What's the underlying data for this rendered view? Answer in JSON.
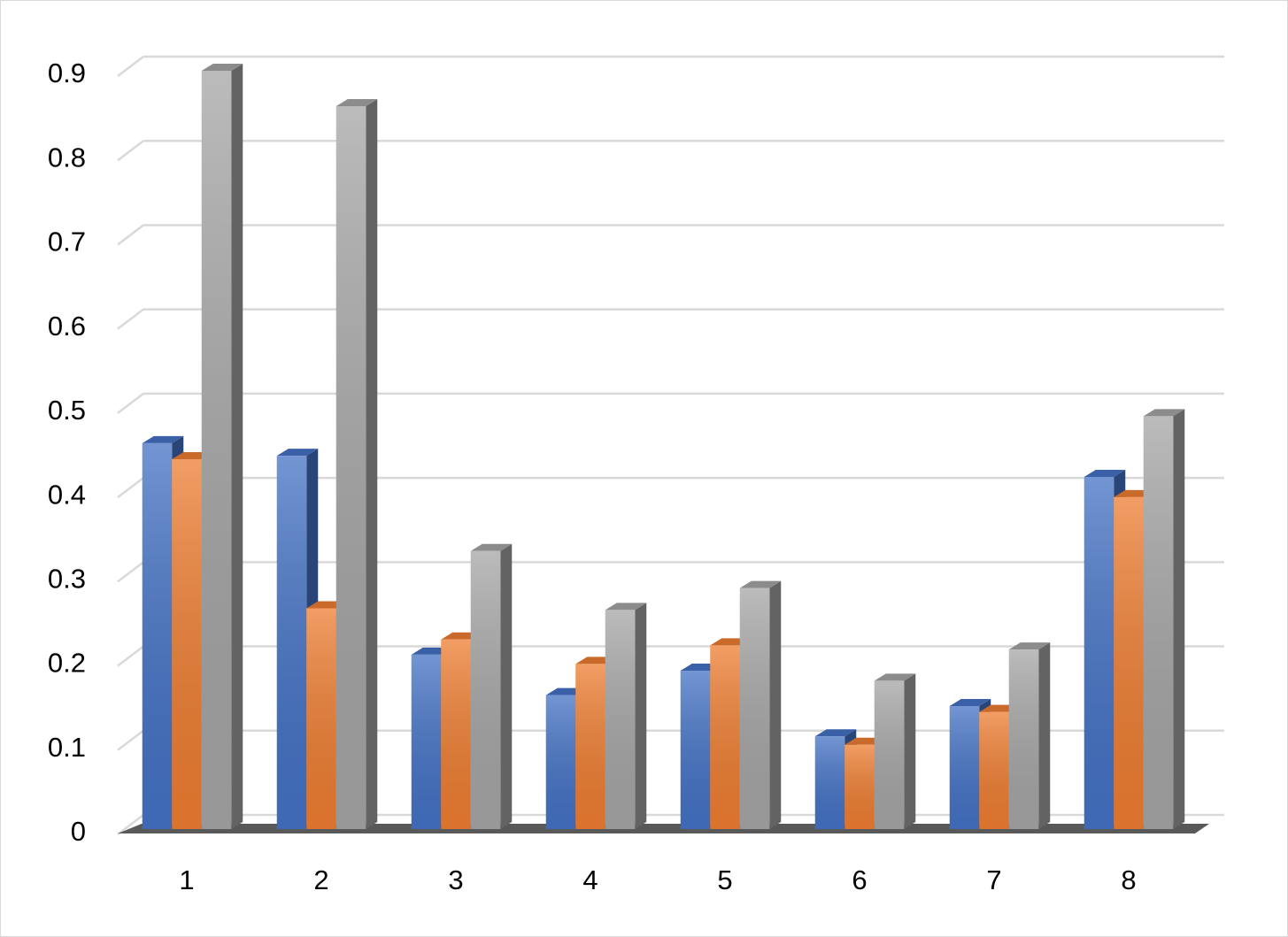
{
  "chart_data": {
    "type": "bar3d",
    "categories": [
      "1",
      "2",
      "3",
      "4",
      "5",
      "6",
      "7",
      "8"
    ],
    "series": [
      {
        "color": "#4472c4",
        "values": [
          0.458,
          0.443,
          0.207,
          0.159,
          0.188,
          0.11,
          0.146,
          0.418
        ]
      },
      {
        "color": "#ed7d31",
        "values": [
          0.439,
          0.262,
          0.225,
          0.196,
          0.218,
          0.1,
          0.139,
          0.394
        ]
      },
      {
        "color": "#a5a5a5",
        "values": [
          0.9,
          0.858,
          0.33,
          0.26,
          0.286,
          0.176,
          0.213,
          0.49
        ]
      }
    ],
    "ylim": [
      0,
      0.9
    ],
    "yticks": [
      0,
      0.1,
      0.2,
      0.3,
      0.4,
      0.5,
      0.6,
      0.7,
      0.8,
      0.9
    ],
    "grid": true
  }
}
